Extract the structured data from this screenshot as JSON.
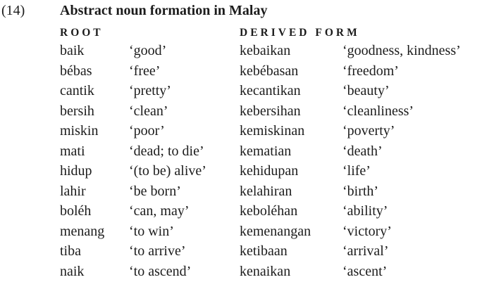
{
  "doc": {
    "example_number": "(14)",
    "title": "Abstract noun formation in Malay",
    "headers": {
      "root": "ROOT",
      "derived": "DERIVED FORM"
    },
    "rows": [
      {
        "root": "baik",
        "root_gloss": "‘good’",
        "derived": "kebaikan",
        "derived_gloss": "‘goodness, kindness’"
      },
      {
        "root": "bébas",
        "root_gloss": "‘free’",
        "derived": "kebébasan",
        "derived_gloss": "‘freedom’"
      },
      {
        "root": "cantik",
        "root_gloss": "‘pretty’",
        "derived": "kecantikan",
        "derived_gloss": "‘beauty’"
      },
      {
        "root": "bersih",
        "root_gloss": "‘clean’",
        "derived": "kebersihan",
        "derived_gloss": "‘cleanliness’"
      },
      {
        "root": "miskin",
        "root_gloss": "‘poor’",
        "derived": "kemiskinan",
        "derived_gloss": "‘poverty’"
      },
      {
        "root": "mati",
        "root_gloss": "‘dead; to die’",
        "derived": "kematian",
        "derived_gloss": "‘death’"
      },
      {
        "root": "hidup",
        "root_gloss": "‘(to be) alive’",
        "derived": "kehidupan",
        "derived_gloss": "‘life’"
      },
      {
        "root": "lahir",
        "root_gloss": "‘be born’",
        "derived": "kelahiran",
        "derived_gloss": "‘birth’"
      },
      {
        "root": "boléh",
        "root_gloss": "‘can, may’",
        "derived": "keboléhan",
        "derived_gloss": "‘ability’"
      },
      {
        "root": "menang",
        "root_gloss": "‘to win’",
        "derived": "kemenangan",
        "derived_gloss": "‘victory’"
      },
      {
        "root": "tiba",
        "root_gloss": "‘to arrive’",
        "derived": "ketibaan",
        "derived_gloss": "‘arrival’"
      },
      {
        "root": "naik",
        "root_gloss": "‘to ascend’",
        "derived": "kenaikan",
        "derived_gloss": "‘ascent’"
      }
    ]
  }
}
